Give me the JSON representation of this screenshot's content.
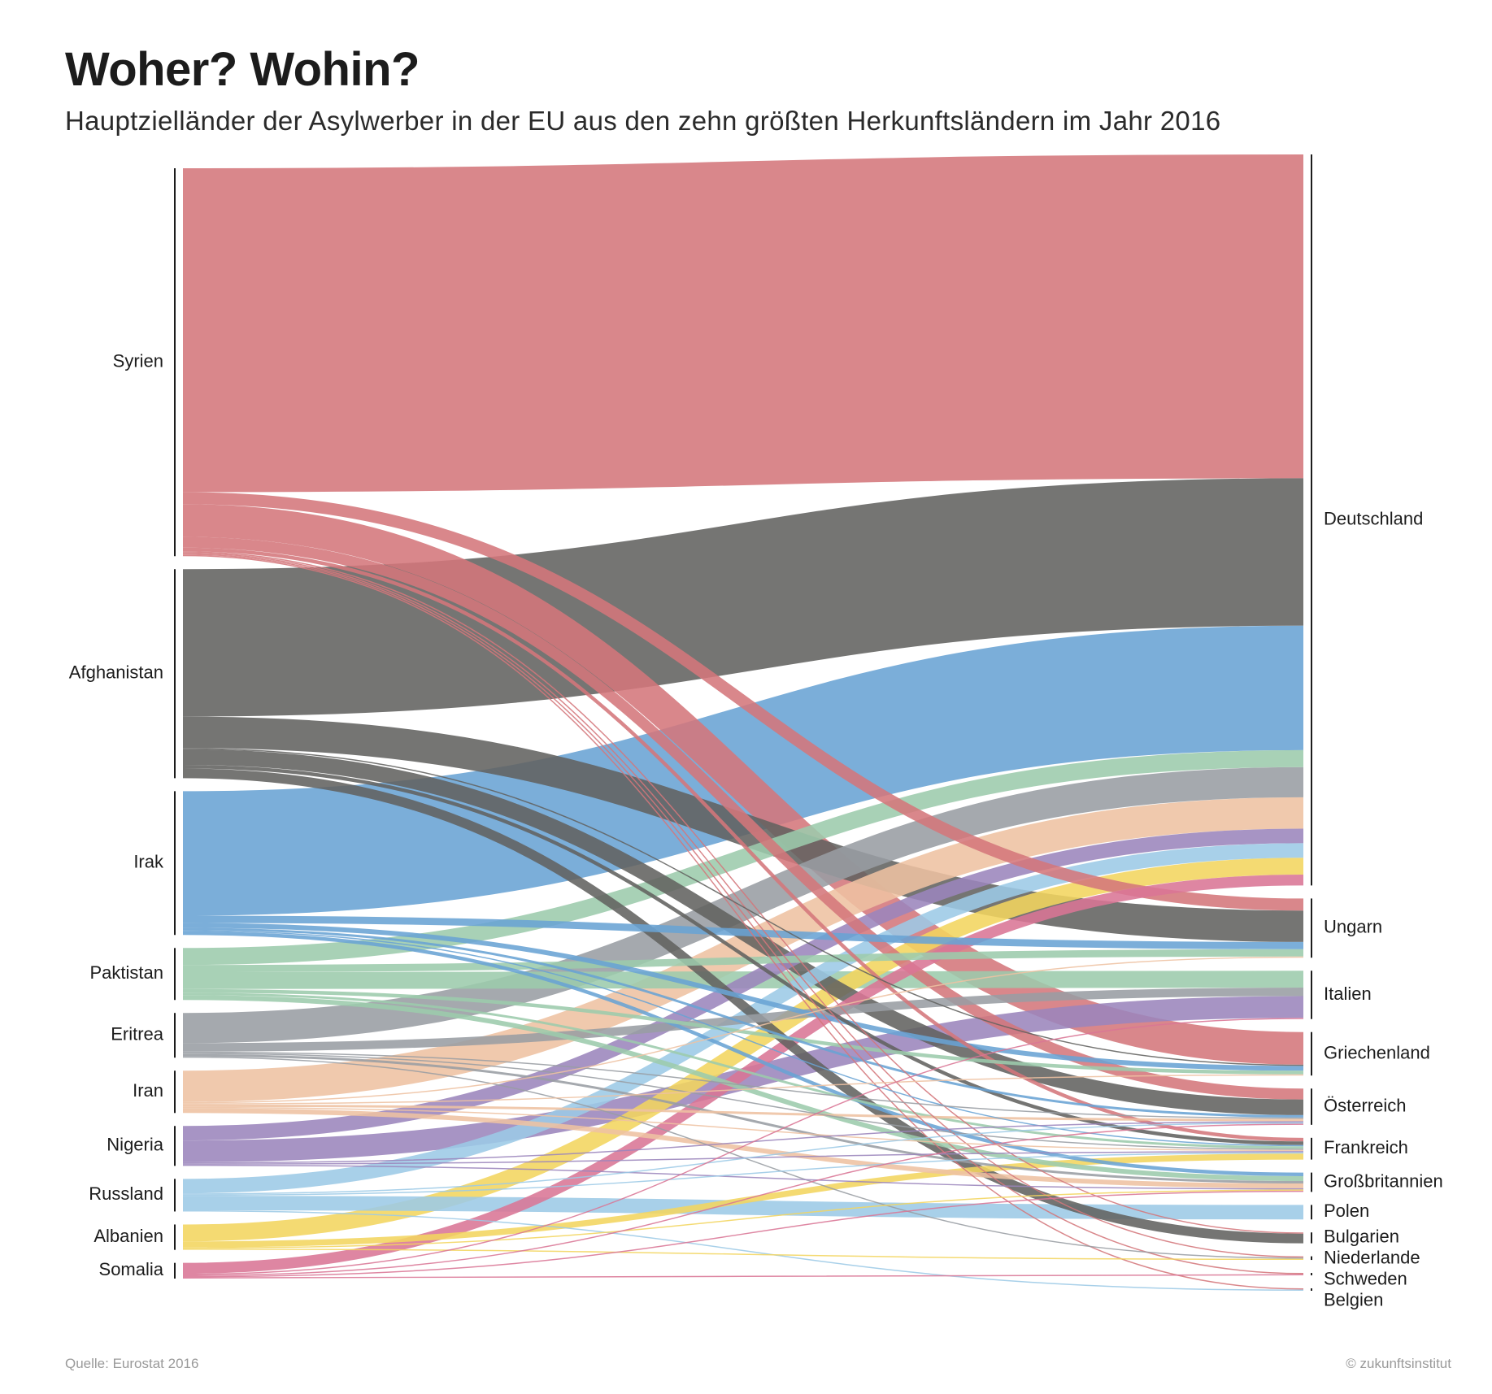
{
  "header": {
    "title": "Woher? Wohin?",
    "subtitle": "Hauptzielländer der Asylwerber in der EU aus den zehn größten Herkunftsländern im Jahr 2016"
  },
  "footer": {
    "source": "Quelle: Eurostat 2016",
    "credit": "© zukunftsinstitut"
  },
  "chart_data": {
    "type": "sankey",
    "sources": [
      {
        "name": "Syrien",
        "color": "#d4767b"
      },
      {
        "name": "Afghanistan",
        "color": "#626260"
      },
      {
        "name": "Irak",
        "color": "#69a3d4"
      },
      {
        "name": "Paktistan",
        "color": "#9ccbac"
      },
      {
        "name": "Eritrea",
        "color": "#989da3"
      },
      {
        "name": "Iran",
        "color": "#eec2a2"
      },
      {
        "name": "Nigeria",
        "color": "#9b85bc"
      },
      {
        "name": "Russland",
        "color": "#9ccae6"
      },
      {
        "name": "Albanien",
        "color": "#f2d55e"
      },
      {
        "name": "Somalia",
        "color": "#d97595"
      }
    ],
    "targets": [
      "Deutschland",
      "Ungarn",
      "Italien",
      "Griechenland",
      "Österreich",
      "Frankreich",
      "Großbritannien",
      "Polen",
      "Bulgarien",
      "Niederlande",
      "Schweden",
      "Belgien"
    ],
    "links": [
      {
        "source": "Syrien",
        "target": "Deutschland",
        "value": 268
      },
      {
        "source": "Syrien",
        "target": "Ungarn",
        "value": 10
      },
      {
        "source": "Syrien",
        "target": "Griechenland",
        "value": 27
      },
      {
        "source": "Syrien",
        "target": "Österreich",
        "value": 9
      },
      {
        "source": "Syrien",
        "target": "Frankreich",
        "value": 3
      },
      {
        "source": "Syrien",
        "target": "Bulgarien",
        "value": 1
      },
      {
        "source": "Syrien",
        "target": "Niederlande",
        "value": 1
      },
      {
        "source": "Syrien",
        "target": "Schweden",
        "value": 1
      },
      {
        "source": "Syrien",
        "target": "Belgien",
        "value": 1
      },
      {
        "source": "Afghanistan",
        "target": "Deutschland",
        "value": 122
      },
      {
        "source": "Afghanistan",
        "target": "Ungarn",
        "value": 26
      },
      {
        "source": "Afghanistan",
        "target": "Österreich",
        "value": 13
      },
      {
        "source": "Afghanistan",
        "target": "Frankreich",
        "value": 3
      },
      {
        "source": "Afghanistan",
        "target": "Bulgarien",
        "value": 8
      },
      {
        "source": "Afghanistan",
        "target": "Griechenland",
        "value": 1
      },
      {
        "source": "Irak",
        "target": "Deutschland",
        "value": 103
      },
      {
        "source": "Irak",
        "target": "Ungarn",
        "value": 6
      },
      {
        "source": "Irak",
        "target": "Griechenland",
        "value": 4
      },
      {
        "source": "Irak",
        "target": "Großbritannien",
        "value": 3
      },
      {
        "source": "Irak",
        "target": "Österreich",
        "value": 2
      },
      {
        "source": "Irak",
        "target": "Frankreich",
        "value": 1
      },
      {
        "source": "Paktistan",
        "target": "Deutschland",
        "value": 14
      },
      {
        "source": "Paktistan",
        "target": "Italien",
        "value": 14
      },
      {
        "source": "Paktistan",
        "target": "Ungarn",
        "value": 6
      },
      {
        "source": "Paktistan",
        "target": "Großbritannien",
        "value": 4
      },
      {
        "source": "Paktistan",
        "target": "Griechenland",
        "value": 3
      },
      {
        "source": "Paktistan",
        "target": "Frankreich",
        "value": 2
      },
      {
        "source": "Eritrea",
        "target": "Deutschland",
        "value": 25
      },
      {
        "source": "Eritrea",
        "target": "Italien",
        "value": 7
      },
      {
        "source": "Eritrea",
        "target": "Großbritannien",
        "value": 2
      },
      {
        "source": "Eritrea",
        "target": "Niederlande",
        "value": 1
      },
      {
        "source": "Eritrea",
        "target": "Österreich",
        "value": 1
      },
      {
        "source": "Eritrea",
        "target": "Frankreich",
        "value": 1
      },
      {
        "source": "Iran",
        "target": "Deutschland",
        "value": 26
      },
      {
        "source": "Iran",
        "target": "Großbritannien",
        "value": 4
      },
      {
        "source": "Iran",
        "target": "Österreich",
        "value": 2
      },
      {
        "source": "Iran",
        "target": "Frankreich",
        "value": 1
      },
      {
        "source": "Iran",
        "target": "Ungarn",
        "value": 1
      },
      {
        "source": "Iran",
        "target": "Griechenland",
        "value": 1
      },
      {
        "source": "Nigeria",
        "target": "Deutschland",
        "value": 12
      },
      {
        "source": "Nigeria",
        "target": "Italien",
        "value": 18
      },
      {
        "source": "Nigeria",
        "target": "Großbritannien",
        "value": 1
      },
      {
        "source": "Nigeria",
        "target": "Frankreich",
        "value": 1
      },
      {
        "source": "Nigeria",
        "target": "Österreich",
        "value": 1
      },
      {
        "source": "Russland",
        "target": "Deutschland",
        "value": 12
      },
      {
        "source": "Russland",
        "target": "Polen",
        "value": 12
      },
      {
        "source": "Russland",
        "target": "Österreich",
        "value": 1
      },
      {
        "source": "Russland",
        "target": "Frankreich",
        "value": 1
      },
      {
        "source": "Russland",
        "target": "Belgien",
        "value": 1
      },
      {
        "source": "Albanien",
        "target": "Deutschland",
        "value": 14
      },
      {
        "source": "Albanien",
        "target": "Frankreich",
        "value": 5
      },
      {
        "source": "Albanien",
        "target": "Großbritannien",
        "value": 1
      },
      {
        "source": "Albanien",
        "target": "Niederlande",
        "value": 1
      },
      {
        "source": "Somalia",
        "target": "Deutschland",
        "value": 9
      },
      {
        "source": "Somalia",
        "target": "Italien",
        "value": 1
      },
      {
        "source": "Somalia",
        "target": "Österreich",
        "value": 1
      },
      {
        "source": "Somalia",
        "target": "Großbritannien",
        "value": 1
      },
      {
        "source": "Somalia",
        "target": "Schweden",
        "value": 1
      }
    ]
  }
}
